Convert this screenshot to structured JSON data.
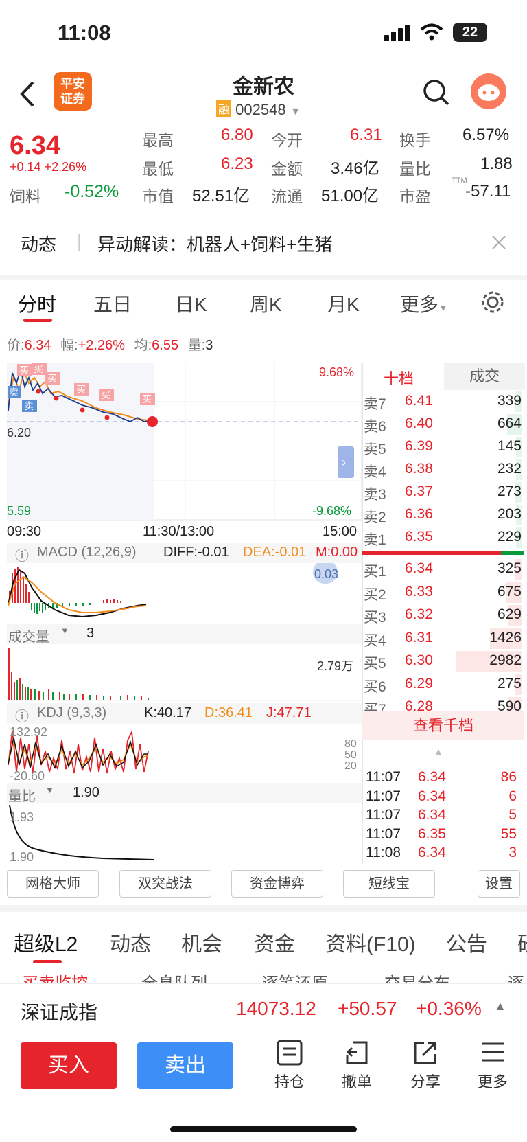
{
  "status": {
    "time": "11:08",
    "battery": "22"
  },
  "header": {
    "title": "金新农",
    "code": "002548",
    "tag": "融",
    "broker_logo": "平安\n证券",
    "broker_line1": "平安",
    "broker_line2": "证券"
  },
  "quote": {
    "price": "6.34",
    "change": "+0.14",
    "change_pct": "+2.26%",
    "sector": "饲料",
    "sector_pct": "-0.52%",
    "high_label": "最高",
    "high": "6.80",
    "low_label": "最低",
    "low": "6.23",
    "mcap_label": "市值",
    "mcap": "52.51亿",
    "open_label": "今开",
    "open": "6.31",
    "amount_label": "金额",
    "amount": "3.46亿",
    "float_label": "流通",
    "float": "51.00亿",
    "turnover_label": "换手",
    "turnover": "6.57%",
    "vratio_label": "量比",
    "vratio": "1.88",
    "pe_label": "市盈",
    "pe_sup": "TTM",
    "pe": "-57.11"
  },
  "dynamic": {
    "label": "动态",
    "text": "异动解读：机器人+饲料+生猪"
  },
  "tabs": [
    "分时",
    "五日",
    "日K",
    "周K",
    "月K",
    "更多"
  ],
  "pricebar": {
    "p_label": "价:",
    "p": "6.34",
    "f_label": "幅:",
    "f": "+2.26%",
    "a_label": "均:",
    "a": "6.55",
    "v_label": "量:",
    "v": "3"
  },
  "chart": {
    "top_pct": "9.68%",
    "bot_pct": "-9.68%",
    "y_mid": "6.20",
    "y_low": "5.59",
    "t_start": "09:30",
    "t_mid": "11:30/13:00",
    "t_end": "15:00",
    "buy": "买",
    "sell": "卖"
  },
  "macd": {
    "label": "MACD (12,26,9)",
    "diff": "DIFF:-0.01",
    "dea": "DEA:-0.01",
    "m": "M:0.00",
    "scale": "0.03"
  },
  "volume": {
    "label": "成交量",
    "value": "3",
    "max": "2.79万"
  },
  "kdj": {
    "label": "KDJ (9,3,3)",
    "k": "K:40.17",
    "d": "D:36.41",
    "j": "J:47.71",
    "top": "132.92",
    "bot": "-20.60",
    "l80": "80",
    "l50": "50",
    "l20": "20"
  },
  "vr": {
    "label": "量比",
    "value": "1.90",
    "top": "1.93",
    "bot": "1.90"
  },
  "orderbook": {
    "tab1": "十档",
    "tab2": "成交",
    "asks": [
      {
        "l": "卖7",
        "p": "6.41",
        "v": "339",
        "b": 0.11
      },
      {
        "l": "卖6",
        "p": "6.40",
        "v": "664",
        "b": 0.22
      },
      {
        "l": "卖5",
        "p": "6.39",
        "v": "145",
        "b": 0.05
      },
      {
        "l": "卖4",
        "p": "6.38",
        "v": "232",
        "b": 0.08
      },
      {
        "l": "卖3",
        "p": "6.37",
        "v": "273",
        "b": 0.09
      },
      {
        "l": "卖2",
        "p": "6.36",
        "v": "203",
        "b": 0.07
      },
      {
        "l": "卖1",
        "p": "6.35",
        "v": "229",
        "b": 0.08
      }
    ],
    "bids": [
      {
        "l": "买1",
        "p": "6.34",
        "v": "325",
        "b": 0.11
      },
      {
        "l": "买2",
        "p": "6.33",
        "v": "675",
        "b": 0.23
      },
      {
        "l": "买3",
        "p": "6.32",
        "v": "629",
        "b": 0.21
      },
      {
        "l": "买4",
        "p": "6.31",
        "v": "1426",
        "b": 0.48
      },
      {
        "l": "买5",
        "p": "6.30",
        "v": "2982",
        "b": 1.0
      },
      {
        "l": "买6",
        "p": "6.29",
        "v": "275",
        "b": 0.09
      },
      {
        "l": "买7",
        "p": "6.28",
        "v": "590",
        "b": 0.2
      }
    ],
    "more": "查看千档"
  },
  "trades": [
    {
      "t": "11:07",
      "p": "6.34",
      "v": "86"
    },
    {
      "t": "11:07",
      "p": "6.34",
      "v": "6"
    },
    {
      "t": "11:07",
      "p": "6.34",
      "v": "5"
    },
    {
      "t": "11:07",
      "p": "6.35",
      "v": "55"
    },
    {
      "t": "11:08",
      "p": "6.34",
      "v": "3"
    }
  ],
  "tools": [
    "网格大师",
    "双突战法",
    "资金博弈",
    "短线宝",
    "设置"
  ],
  "subtabs": [
    "超级L2",
    "动态",
    "机会",
    "资金",
    "资料(F10)",
    "公告",
    "研"
  ],
  "subsub": [
    "买卖监控",
    "全息队列",
    "逐笔还原",
    "交易分布",
    "逐"
  ],
  "index": {
    "name": "深证成指",
    "value": "14073.12",
    "chg": "+50.57",
    "pct": "+0.36%"
  },
  "bottom": {
    "buy": "买入",
    "sell": "卖出",
    "hold": "持仓",
    "cancel": "撤单",
    "share": "分享",
    "more": "更多"
  },
  "colors": {
    "red": "#e5242b",
    "green": "#0a9a3c",
    "blue": "#3e8ef7",
    "orange": "#f28c1c",
    "broker": "#f46a1d"
  }
}
